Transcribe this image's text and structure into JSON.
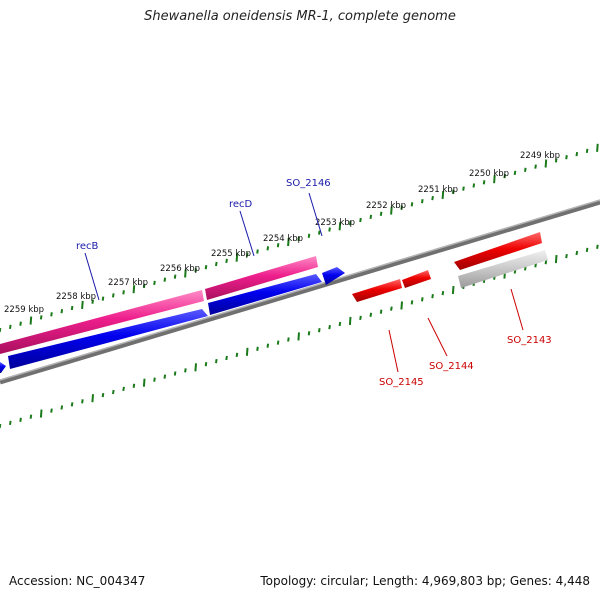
{
  "title": "Shewanella oneidensis MR-1, complete genome",
  "footer": {
    "accession": "Accession: NC_004347",
    "info": "Topology: circular; Length: 4,969,803 bp; Genes: 4,448"
  },
  "colors": {
    "forward_gene": "#0000dd",
    "reverse_gene": "#ee0000",
    "rna_gene": "#ee1e8c",
    "pseudo_gene": "#c8c8c8",
    "backbone": "#808080",
    "ticks": "#1a7a1a",
    "forward_label": "#1a1aaa",
    "reverse_label": "#cc0000"
  },
  "scale_labels": [
    "2249 kbp",
    "2250 kbp",
    "2251 kbp",
    "2252 kbp",
    "2253 kbp",
    "2254 kbp",
    "2255 kbp",
    "2256 kbp",
    "2257 kbp",
    "2258 kbp",
    "2259 kbp"
  ],
  "gene_labels": {
    "forward": [
      "SO_2146",
      "recD",
      "recB"
    ],
    "reverse": [
      "SO_2143",
      "SO_2144",
      "SO_2145"
    ]
  }
}
